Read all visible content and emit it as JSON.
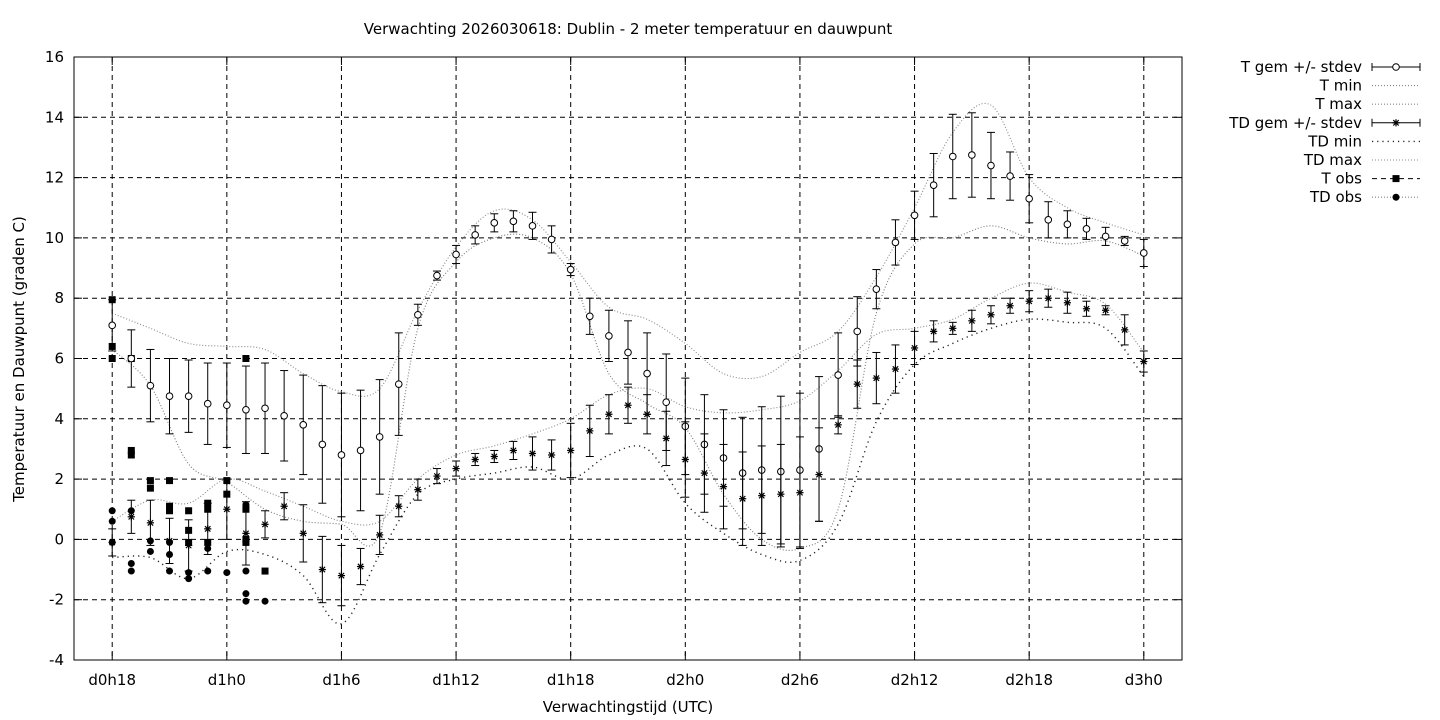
{
  "chart_data": {
    "type": "line",
    "title": "Verwachting 2026030618: Dublin - 2 meter temperatuur en dauwpunt",
    "xlabel": "Verwachtingstijd (UTC)",
    "ylabel": "Temperatuur en Dauwpunt (graden C)",
    "ylim": [
      -4,
      16
    ],
    "xlim": [
      -1,
      28
    ],
    "grid": true,
    "legend_position": "right",
    "y_ticks": [
      "-4",
      "-2",
      "0",
      "2",
      "4",
      "6",
      "8",
      "10",
      "12",
      "14",
      "16"
    ],
    "x_ticks": [
      {
        "x": 0,
        "label": "d0h18"
      },
      {
        "x": 3,
        "label": "d1h0"
      },
      {
        "x": 6,
        "label": "d1h6"
      },
      {
        "x": 9,
        "label": "d1h12"
      },
      {
        "x": 12,
        "label": "d1h18"
      },
      {
        "x": 15,
        "label": "d2h0"
      },
      {
        "x": 18,
        "label": "d2h6"
      },
      {
        "x": 21,
        "label": "d2h12"
      },
      {
        "x": 24,
        "label": "d2h18"
      },
      {
        "x": 27,
        "label": "d3h0"
      }
    ],
    "legend": [
      {
        "label": "T gem +/- stdev",
        "marker": "circle",
        "line": "errorbar"
      },
      {
        "label": "T min",
        "marker": "none",
        "line": "dotted"
      },
      {
        "label": "T max",
        "marker": "none",
        "line": "dotted"
      },
      {
        "label": "TD gem +/- stdev",
        "marker": "star",
        "line": "errorbar"
      },
      {
        "label": "TD min",
        "marker": "none",
        "line": "dotted-sparse"
      },
      {
        "label": "TD max",
        "marker": "none",
        "line": "dotted"
      },
      {
        "label": "T obs",
        "marker": "square",
        "line": "dashed"
      },
      {
        "label": "TD obs",
        "marker": "dot",
        "line": "dotted"
      }
    ],
    "t_mean": {
      "x": [
        0,
        0.5,
        1,
        1.5,
        2,
        2.5,
        3,
        3.5,
        4,
        4.5,
        5,
        5.5,
        6,
        6.5,
        7,
        7.5,
        8,
        8.5,
        9,
        9.5,
        10,
        10.5,
        11,
        11.5,
        12,
        12.5,
        13,
        13.5,
        14,
        14.5,
        15,
        15.5,
        16,
        16.5,
        17,
        17.5,
        18,
        18.5,
        19,
        19.5,
        20,
        20.5,
        21,
        21.5,
        22,
        22.5,
        23,
        23.5,
        24,
        24.5,
        25,
        25.5,
        26,
        26.5,
        27
      ],
      "mean": [
        7.1,
        6.0,
        5.1,
        4.75,
        4.75,
        4.5,
        4.45,
        4.3,
        4.35,
        4.1,
        3.8,
        3.15,
        2.8,
        2.95,
        3.4,
        5.15,
        7.45,
        8.75,
        9.45,
        10.1,
        10.5,
        10.55,
        10.4,
        9.95,
        8.95,
        7.4,
        6.75,
        6.2,
        5.5,
        4.55,
        3.75,
        3.15,
        2.7,
        2.2,
        2.3,
        2.25,
        2.3,
        3.0,
        5.45,
        6.9,
        8.3,
        9.85,
        10.75,
        11.75,
        12.7,
        12.75,
        12.4,
        12.05,
        11.3,
        10.6,
        10.45,
        10.3,
        10.05,
        9.9,
        9.5
      ],
      "stdev": [
        0.85,
        0.95,
        1.2,
        1.25,
        1.2,
        1.35,
        1.4,
        1.45,
        1.5,
        1.5,
        1.65,
        1.95,
        2.05,
        2.0,
        1.9,
        1.7,
        0.35,
        0.15,
        0.3,
        0.3,
        0.3,
        0.35,
        0.45,
        0.45,
        0.2,
        0.6,
        0.85,
        1.05,
        1.35,
        1.6,
        1.6,
        1.65,
        1.6,
        1.85,
        2.1,
        2.5,
        2.55,
        2.4,
        1.4,
        1.15,
        0.65,
        0.75,
        0.8,
        1.05,
        1.4,
        1.4,
        1.1,
        0.8,
        0.8,
        0.6,
        0.45,
        0.35,
        0.3,
        0.15,
        0.45
      ]
    },
    "td_mean": {
      "x": [
        0,
        0.5,
        1,
        1.5,
        2,
        2.5,
        3,
        3.5,
        4,
        4.5,
        5,
        5.5,
        6,
        6.5,
        7,
        7.5,
        8,
        8.5,
        9,
        9.5,
        10,
        10.5,
        11,
        11.5,
        12,
        12.5,
        13,
        13.5,
        14,
        14.5,
        15,
        15.5,
        16,
        16.5,
        17,
        17.5,
        18,
        18.5,
        19,
        19.5,
        20,
        20.5,
        21,
        21.5,
        22,
        22.5,
        23,
        23.5,
        24,
        24.5,
        25,
        25.5,
        26,
        26.5,
        27
      ],
      "mean": [
        -0.1,
        0.75,
        0.55,
        -0.05,
        -0.2,
        0.35,
        1.0,
        0.2,
        0.5,
        1.1,
        0.2,
        -1.0,
        -1.2,
        -0.9,
        0.15,
        1.1,
        1.65,
        2.1,
        2.35,
        2.65,
        2.75,
        2.95,
        2.85,
        2.8,
        2.95,
        3.6,
        4.15,
        4.45,
        4.15,
        3.35,
        2.65,
        2.2,
        1.75,
        1.35,
        1.45,
        1.5,
        1.55,
        2.15,
        3.8,
        5.15,
        5.35,
        5.65,
        6.35,
        6.9,
        7.0,
        7.25,
        7.45,
        7.75,
        7.9,
        8.0,
        7.85,
        7.65,
        7.6,
        6.95,
        5.9
      ],
      "stdev": [
        0.45,
        0.55,
        0.75,
        0.75,
        0.85,
        0.85,
        1.0,
        1.05,
        0.45,
        0.45,
        0.95,
        1.1,
        1.0,
        0.6,
        0.65,
        0.35,
        0.35,
        0.25,
        0.25,
        0.2,
        0.2,
        0.3,
        0.55,
        0.5,
        0.9,
        0.85,
        0.65,
        0.6,
        0.65,
        0.9,
        1.25,
        1.3,
        1.4,
        1.55,
        1.65,
        1.65,
        1.85,
        1.55,
        0.3,
        0.8,
        0.85,
        0.8,
        0.55,
        0.35,
        0.2,
        0.35,
        0.3,
        0.25,
        0.35,
        0.3,
        0.35,
        0.25,
        0.15,
        0.5,
        0.35
      ]
    },
    "t_min": {
      "x": [
        0,
        1,
        2,
        3,
        4,
        5,
        6,
        7,
        8,
        9,
        10,
        11,
        12,
        13,
        14,
        15,
        16,
        17,
        18,
        19,
        20,
        21,
        22,
        23,
        24,
        25,
        26,
        27
      ],
      "values": [
        6.3,
        5.1,
        2.5,
        1.9,
        1.0,
        0.6,
        0.5,
        0.2,
        7.0,
        9.2,
        10.0,
        10.0,
        8.8,
        5.5,
        4.5,
        3.7,
        1.5,
        0.0,
        -0.3,
        1.0,
        7.5,
        9.8,
        10.0,
        10.4,
        10.0,
        9.8,
        9.9,
        9.4
      ]
    },
    "t_max": {
      "x": [
        0,
        1,
        2,
        3,
        4,
        5,
        6,
        7,
        8,
        9,
        10,
        11,
        12,
        13,
        14,
        15,
        16,
        17,
        18,
        19,
        20,
        21,
        22,
        23,
        24,
        25,
        26,
        27
      ],
      "values": [
        7.5,
        7.0,
        6.5,
        6.4,
        6.3,
        5.5,
        4.9,
        5.0,
        7.6,
        9.7,
        10.9,
        10.6,
        9.2,
        7.7,
        7.3,
        6.5,
        5.5,
        5.4,
        6.2,
        6.9,
        8.7,
        11.0,
        13.5,
        14.4,
        12.0,
        11.0,
        10.5,
        10.1
      ]
    },
    "td_min": {
      "x": [
        0,
        1,
        2,
        3,
        4,
        5,
        6,
        7,
        8,
        9,
        10,
        11,
        12,
        13,
        14,
        15,
        16,
        17,
        18,
        19,
        20,
        21,
        22,
        23,
        24,
        25,
        26,
        27
      ],
      "values": [
        -0.6,
        -0.6,
        -1.3,
        -0.4,
        -0.5,
        -1.2,
        -2.8,
        -0.5,
        1.5,
        2.0,
        2.2,
        2.4,
        2.0,
        2.8,
        3.0,
        1.2,
        0.2,
        -0.5,
        -0.7,
        0.5,
        3.9,
        5.8,
        6.5,
        7.0,
        7.3,
        7.2,
        7.0,
        5.4
      ]
    },
    "td_max": {
      "x": [
        0,
        1,
        2,
        3,
        4,
        5,
        6,
        7,
        8,
        9,
        10,
        11,
        12,
        13,
        14,
        15,
        16,
        17,
        18,
        19,
        20,
        21,
        22,
        23,
        24,
        25,
        26,
        27
      ],
      "values": [
        0.6,
        1.3,
        1.2,
        2.0,
        1.6,
        1.1,
        0.6,
        0.6,
        2.0,
        2.8,
        3.1,
        3.5,
        4.0,
        4.8,
        5.0,
        4.4,
        4.2,
        4.3,
        4.6,
        5.6,
        6.8,
        7.0,
        7.3,
        8.0,
        8.5,
        8.2,
        7.8,
        6.2
      ]
    },
    "t_obs": {
      "points": [
        [
          0,
          7.95
        ],
        [
          0,
          6.4
        ],
        [
          0,
          6.0
        ],
        [
          0.5,
          6.0
        ],
        [
          0.5,
          2.95
        ],
        [
          0.5,
          2.8
        ],
        [
          1,
          1.95
        ],
        [
          1,
          1.7
        ],
        [
          1.5,
          1.95
        ],
        [
          1.5,
          1.1
        ],
        [
          1.5,
          0.95
        ],
        [
          2,
          0.95
        ],
        [
          2,
          0.3
        ],
        [
          2,
          -0.1
        ],
        [
          2.5,
          1.2
        ],
        [
          2.5,
          1.0
        ],
        [
          2.5,
          -0.1
        ],
        [
          3,
          1.95
        ],
        [
          3,
          1.5
        ],
        [
          3.5,
          6.0
        ],
        [
          3.5,
          1.0
        ],
        [
          3.5,
          0.0
        ],
        [
          3.5,
          -0.1
        ],
        [
          4,
          -1.05
        ]
      ]
    },
    "td_obs": {
      "points": [
        [
          0,
          0.95
        ],
        [
          0,
          0.6
        ],
        [
          0,
          -0.1
        ],
        [
          0.5,
          0.95
        ],
        [
          0.5,
          -0.8
        ],
        [
          0.5,
          -1.05
        ],
        [
          1,
          -0.05
        ],
        [
          1,
          -0.4
        ],
        [
          1.5,
          -0.1
        ],
        [
          1.5,
          -0.5
        ],
        [
          1.5,
          -1.05
        ],
        [
          2,
          -1.1
        ],
        [
          2,
          -1.3
        ],
        [
          2.5,
          -0.3
        ],
        [
          2.5,
          -1.05
        ],
        [
          3,
          -1.1
        ],
        [
          3.5,
          1.15
        ],
        [
          3.5,
          -1.05
        ],
        [
          3.5,
          -1.8
        ],
        [
          3.5,
          -2.05
        ],
        [
          4,
          -2.05
        ]
      ]
    }
  }
}
